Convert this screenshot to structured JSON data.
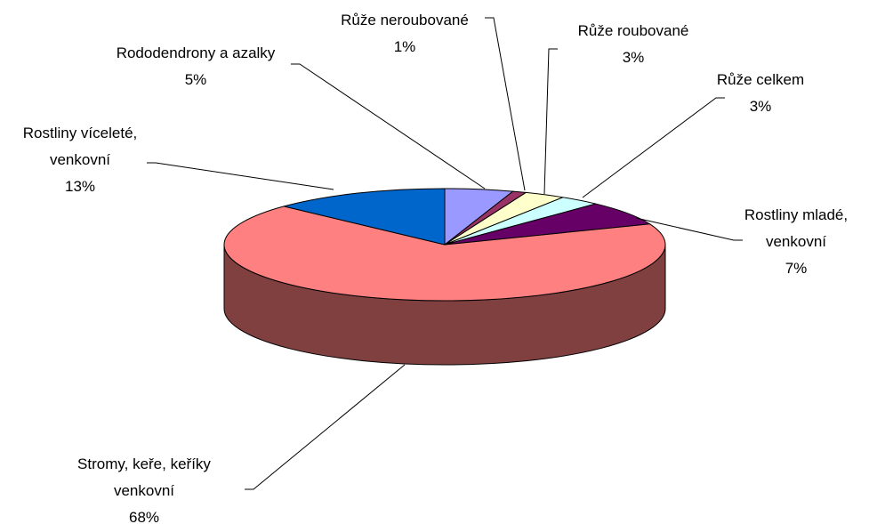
{
  "chart_data": {
    "type": "pie3d",
    "categories": [
      "Rododendrony a azalky",
      "Růže neroubované",
      "Růže roubované",
      "Růže celkem",
      "Rostliny mladé, venkovní",
      "Stromy, keře, keříky venkovní",
      "Rostliny víceleté, venkovní"
    ],
    "values": [
      5,
      1,
      3,
      3,
      7,
      68,
      13
    ],
    "value_labels": [
      "5%",
      "1%",
      "3%",
      "3%",
      "7%",
      "68%",
      "13%"
    ],
    "colors": [
      "#9999ff",
      "#993366",
      "#ffffcc",
      "#ccffff",
      "#660066",
      "#ff8080",
      "#0066cc"
    ]
  }
}
